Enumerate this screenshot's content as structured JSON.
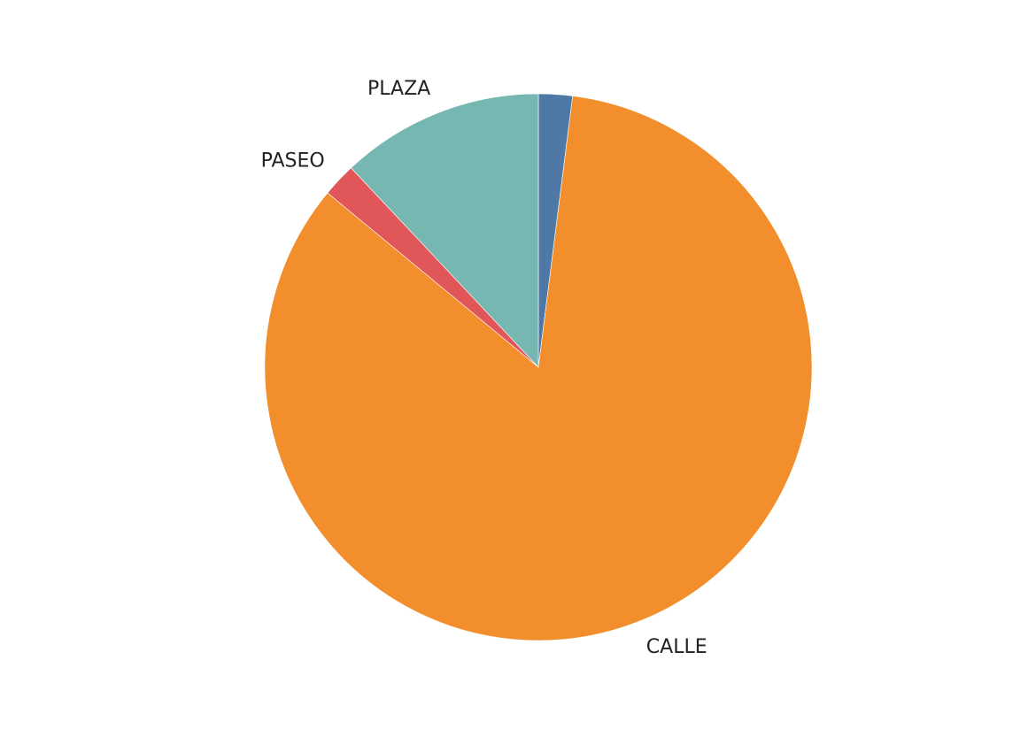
{
  "chart_data": {
    "type": "pie",
    "title": "",
    "start_angle_deg": 0,
    "direction": "clockwise",
    "slices": [
      {
        "key": "unlabeled",
        "label": "",
        "value": 2.0,
        "color": "#4e79a7"
      },
      {
        "key": "calle",
        "label": "CALLE",
        "value": 84.0,
        "color": "#f28e2b"
      },
      {
        "key": "paseo",
        "label": "PASEO",
        "value": 2.0,
        "color": "#e15759"
      },
      {
        "key": "plaza",
        "label": "PLAZA",
        "value": 12.0,
        "color": "#76b7b2"
      }
    ]
  }
}
